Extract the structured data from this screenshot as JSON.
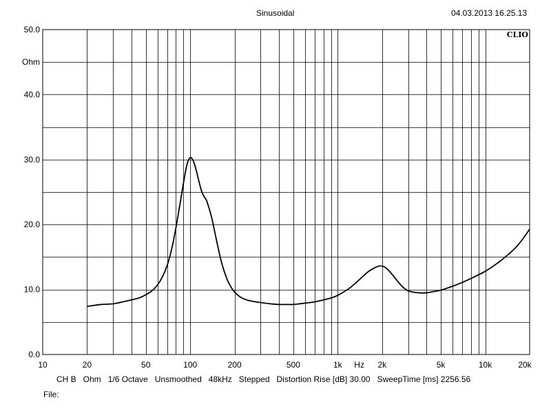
{
  "header": {
    "title": "Sinusoidal",
    "timestamp": "04.03.2013 16.25.13",
    "brand": "CLIO"
  },
  "footer": {
    "channel": "CH B",
    "unit": "Ohm",
    "resolution": "1/6 Octave",
    "smoothing": "Unsmoothed",
    "sample_rate": "48kHz",
    "mode": "Stepped",
    "distortion": "Distortion Rise [dB] 30.00",
    "sweep_time": "SweepTime [ms] 2256.56",
    "file_label": "File:"
  },
  "chart_data": {
    "type": "line",
    "title": "Sinusoidal",
    "xlabel": "Hz",
    "ylabel": "Ohm",
    "x_scale": "log",
    "xlim": [
      10,
      20000
    ],
    "ylim": [
      0,
      50
    ],
    "grid": true,
    "x_ticks": [
      {
        "value": 10,
        "label": "10"
      },
      {
        "value": 20,
        "label": "20"
      },
      {
        "value": 50,
        "label": "50"
      },
      {
        "value": 100,
        "label": "100"
      },
      {
        "value": 200,
        "label": "200"
      },
      {
        "value": 500,
        "label": "500"
      },
      {
        "value": 1000,
        "label": "1k"
      },
      {
        "value": 2000,
        "label": "2k"
      },
      {
        "value": 5000,
        "label": "5k"
      },
      {
        "value": 10000,
        "label": "10k"
      },
      {
        "value": 20000,
        "label": "20k"
      }
    ],
    "y_ticks": [
      {
        "value": 0,
        "label": "0.0"
      },
      {
        "value": 10,
        "label": "10.0"
      },
      {
        "value": 20,
        "label": "20.0"
      },
      {
        "value": 30,
        "label": "30.0"
      },
      {
        "value": 40,
        "label": "40.0"
      },
      {
        "value": 50,
        "label": "50.0"
      }
    ],
    "series": [
      {
        "color": "#000000",
        "x": [
          20,
          25,
          30,
          35,
          40,
          45,
          50,
          55,
          60,
          65,
          70,
          75,
          80,
          85,
          90,
          95,
          100,
          105,
          110,
          115,
          120,
          125,
          130,
          140,
          150,
          160,
          170,
          180,
          190,
          200,
          220,
          250,
          300,
          350,
          400,
          450,
          500,
          600,
          700,
          800,
          900,
          1000,
          1200,
          1400,
          1600,
          1800,
          1900,
          2000,
          2100,
          2200,
          2400,
          2700,
          3000,
          3500,
          4000,
          4500,
          5000,
          6000,
          7000,
          8000,
          10000,
          12000,
          14000,
          16000,
          18000,
          20000
        ],
        "y": [
          7.4,
          7.7,
          7.8,
          8.1,
          8.4,
          8.7,
          9.2,
          9.8,
          10.7,
          12.0,
          13.8,
          16.3,
          19.5,
          23.0,
          26.4,
          29.2,
          30.3,
          29.8,
          28.3,
          26.5,
          25.0,
          24.2,
          23.5,
          21.0,
          17.8,
          14.9,
          12.8,
          11.3,
          10.3,
          9.6,
          8.8,
          8.3,
          8.0,
          7.8,
          7.7,
          7.7,
          7.7,
          7.9,
          8.1,
          8.4,
          8.7,
          9.1,
          10.2,
          11.5,
          12.7,
          13.4,
          13.6,
          13.6,
          13.4,
          13.0,
          12.0,
          10.6,
          9.8,
          9.5,
          9.5,
          9.7,
          9.9,
          10.5,
          11.1,
          11.7,
          12.8,
          14.0,
          15.2,
          16.4,
          17.8,
          19.3
        ]
      }
    ]
  }
}
